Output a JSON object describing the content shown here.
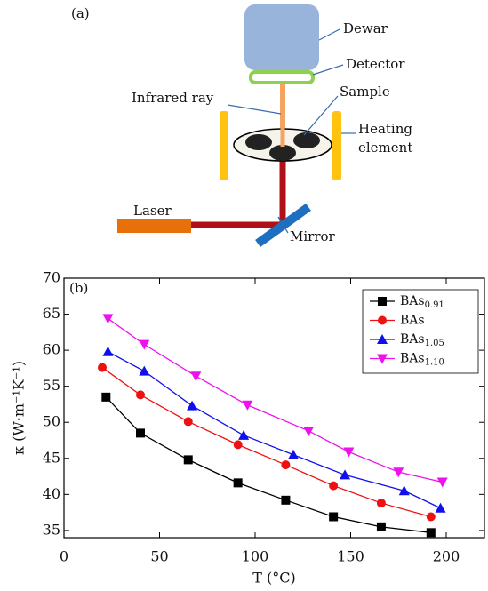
{
  "diagram": {
    "panel": "(a)",
    "labels": {
      "dewar": "Dewar",
      "detector": "Detector",
      "infrared": "Infrared ray",
      "sample": "Sample",
      "heating_1": "Heating",
      "heating_2": "element",
      "laser": "Laser",
      "mirror": "Mirror"
    }
  },
  "chart_data": {
    "type": "line",
    "panel": "(b)",
    "x_label": "T (°C)",
    "y_label": "κ (W·m⁻¹K⁻¹)",
    "xlim": [
      0,
      220
    ],
    "ylim": [
      34,
      70
    ],
    "xticks": [
      0,
      50,
      100,
      150,
      200
    ],
    "yticks": [
      35,
      40,
      45,
      50,
      55,
      60,
      65,
      70
    ],
    "legend": "upper right",
    "series": [
      {
        "name": "BAs",
        "name_sub": "0.91",
        "color": "#000000",
        "marker": "square",
        "x": [
          22,
          40,
          65,
          91,
          116,
          141,
          166,
          192
        ],
        "values": [
          53.5,
          48.5,
          44.8,
          41.6,
          39.2,
          36.9,
          35.5,
          34.7
        ]
      },
      {
        "name": "BAs",
        "color": "#ee1111",
        "marker": "circle",
        "x": [
          20,
          40,
          65,
          91,
          116,
          141,
          166,
          192
        ],
        "values": [
          57.6,
          53.8,
          50.1,
          46.9,
          44.1,
          41.2,
          38.8,
          36.9
        ]
      },
      {
        "name": "BAs",
        "name_sub": "1.05",
        "color": "#1010ee",
        "marker": "triangle-up",
        "x": [
          23,
          42,
          67,
          94,
          120,
          147,
          178,
          197
        ],
        "values": [
          59.8,
          57.1,
          52.3,
          48.2,
          45.5,
          42.7,
          40.5,
          38.1
        ]
      },
      {
        "name": "BAs",
        "name_sub": "1.10",
        "color": "#ee11ee",
        "marker": "triangle-down",
        "x": [
          23,
          42,
          69,
          96,
          128,
          149,
          175,
          198
        ],
        "values": [
          64.4,
          60.8,
          56.4,
          52.4,
          48.8,
          45.9,
          43.1,
          41.7
        ]
      }
    ]
  }
}
